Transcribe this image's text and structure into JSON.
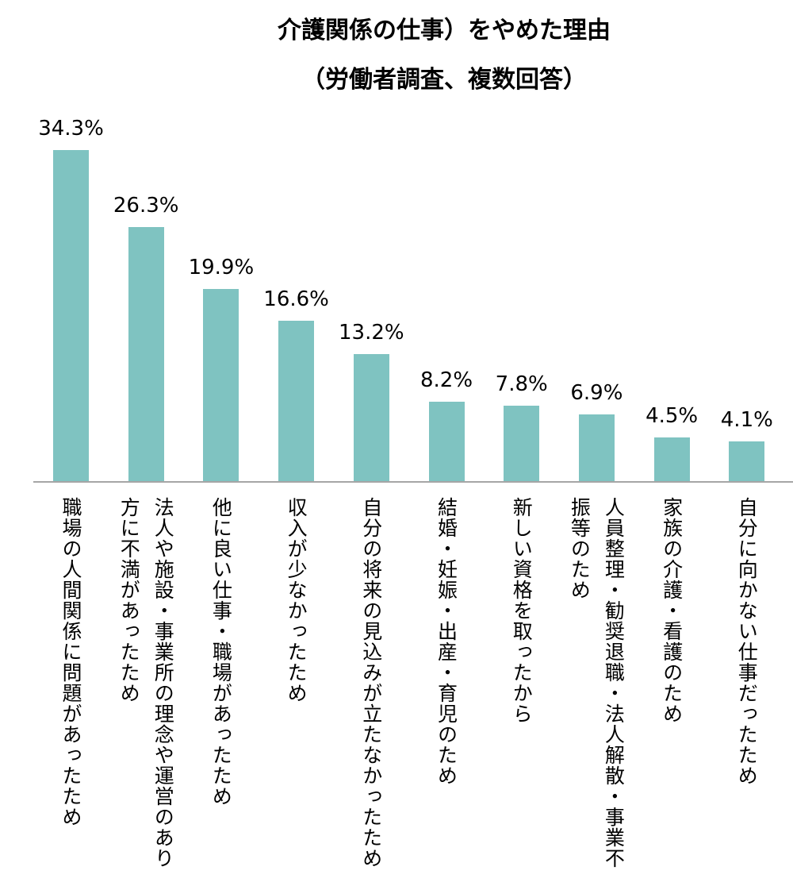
{
  "chart_data": {
    "type": "bar",
    "title": "介護関係の仕事）をやめた理由",
    "subtitle": "（労働者調査、複数回答）",
    "xlabel": "",
    "ylabel": "",
    "ylim": [
      0,
      36
    ],
    "grid": false,
    "bar_color": "#7fc3c1",
    "axis_color": "#a6a6a6",
    "categories": [
      "職場の人間関係に問題があったため",
      "法人や施設・事業所の理念や運営のあり方に不満があったため",
      "他に良い仕事・職場があったため",
      "収入が少なかったため",
      "自分の将来の見込みが立たなかったため",
      "結婚・妊娠・出産・育児のため",
      "新しい資格を取ったから",
      "人員整理・勧奨退職・法人解散・事業不振等のため",
      "家族の介護・看護のため",
      "自分に向かない仕事だったため"
    ],
    "category_lines": [
      [
        "職場の人間関係に問題があったため"
      ],
      [
        "法人や施設・事業所の理念や運営のあり",
        "方に不満があったため"
      ],
      [
        "他に良い仕事・職場があったため"
      ],
      [
        "収入が少なかったため"
      ],
      [
        "自分の将来の見込みが立たなかったため"
      ],
      [
        "結婚・妊娠・出産・育児のため"
      ],
      [
        "新しい資格を取ったから"
      ],
      [
        "人員整理・勧奨退職・法人解散・事業不",
        "振等のため"
      ],
      [
        "家族の介護・看護のため"
      ],
      [
        "自分に向かない仕事だったため"
      ]
    ],
    "values": [
      34.3,
      26.3,
      19.9,
      16.6,
      13.2,
      8.2,
      7.8,
      6.9,
      4.5,
      4.1
    ],
    "value_labels": [
      "34.3%",
      "26.3%",
      "19.9%",
      "16.6%",
      "13.2%",
      "8.2%",
      "7.8%",
      "6.9%",
      "4.5%",
      "4.1%"
    ]
  }
}
